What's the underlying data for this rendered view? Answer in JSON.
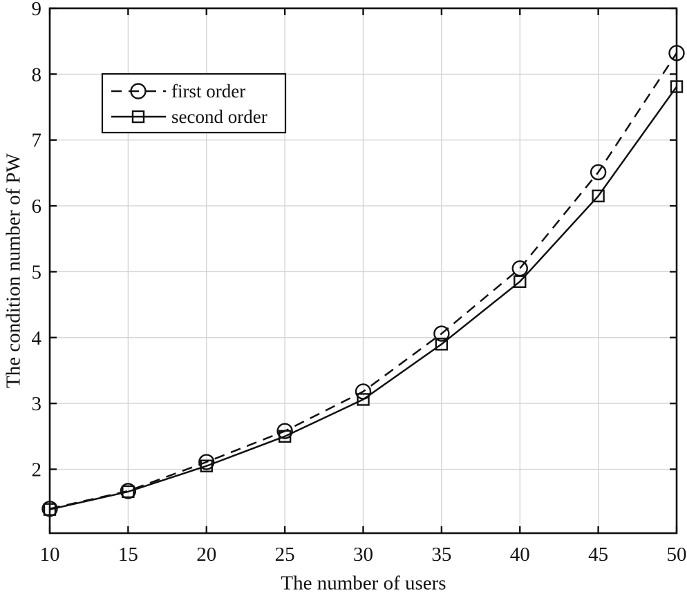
{
  "figure": {
    "background_color": "#ffffff",
    "line_color": "#111111",
    "grid_color": "#d2d2d2"
  },
  "chart_data": {
    "type": "line",
    "title": "",
    "xlabel": "The number of users",
    "ylabel": "The condition number of PW",
    "x": [
      10,
      15,
      20,
      25,
      30,
      35,
      40,
      45,
      50
    ],
    "xticks": [
      "10",
      "15",
      "20",
      "25",
      "30",
      "35",
      "40",
      "45",
      "50"
    ],
    "yticks": [
      "2",
      "3",
      "4",
      "5",
      "6",
      "7",
      "8",
      "9"
    ],
    "xlim": [
      10,
      50
    ],
    "ylim": [
      1.03,
      9
    ],
    "grid": "on",
    "legend_position": "upper-left-inside",
    "series": [
      {
        "name": "first order",
        "line_style": "dashed",
        "marker": "circle",
        "color": "#111111",
        "values": [
          1.4,
          1.67,
          2.11,
          2.58,
          3.18,
          4.06,
          5.05,
          6.51,
          8.32
        ]
      },
      {
        "name": "second order",
        "line_style": "solid",
        "marker": "square",
        "color": "#111111",
        "values": [
          1.39,
          1.66,
          2.05,
          2.5,
          3.06,
          3.9,
          4.85,
          6.15,
          7.81
        ]
      }
    ]
  }
}
